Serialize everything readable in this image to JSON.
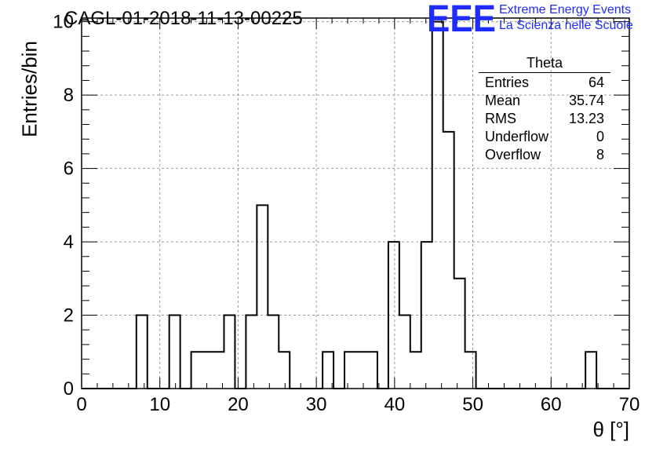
{
  "chart_data": {
    "type": "bar",
    "title": "CAGL-01-2018-11-13-00225",
    "xlabel": "θ [°]",
    "ylabel": "Entries/bin",
    "xlim": [
      0,
      70
    ],
    "ylim": [
      0,
      10.1
    ],
    "bin_width": 1.4,
    "bin_edges_start": 0,
    "x_ticks": [
      0,
      10,
      20,
      30,
      40,
      50,
      60,
      70
    ],
    "y_ticks": [
      0,
      2,
      4,
      6,
      8,
      10
    ],
    "grid": true,
    "values": [
      0,
      0,
      0,
      0,
      0,
      2,
      0,
      0,
      2,
      0,
      1,
      1,
      1,
      2,
      0,
      2,
      5,
      2,
      1,
      0,
      0,
      0,
      1,
      0,
      1,
      1,
      1,
      0,
      4,
      2,
      1,
      4,
      10,
      7,
      3,
      1,
      0,
      0,
      0,
      0,
      0,
      0,
      0,
      0,
      0,
      0,
      1,
      0,
      0,
      0
    ]
  },
  "stats": {
    "name": "Theta",
    "rows": [
      {
        "label": "Entries",
        "value": "64"
      },
      {
        "label": "Mean",
        "value": "35.74"
      },
      {
        "label": "RMS",
        "value": "13.23"
      },
      {
        "label": "Underflow",
        "value": "0"
      },
      {
        "label": "Overflow",
        "value": "8"
      }
    ]
  },
  "logo": {
    "mark": "EEE",
    "line1": "Extreme Energy Events",
    "line2": "La Scienza nelle Scuole",
    "color": "#1f2bff"
  }
}
